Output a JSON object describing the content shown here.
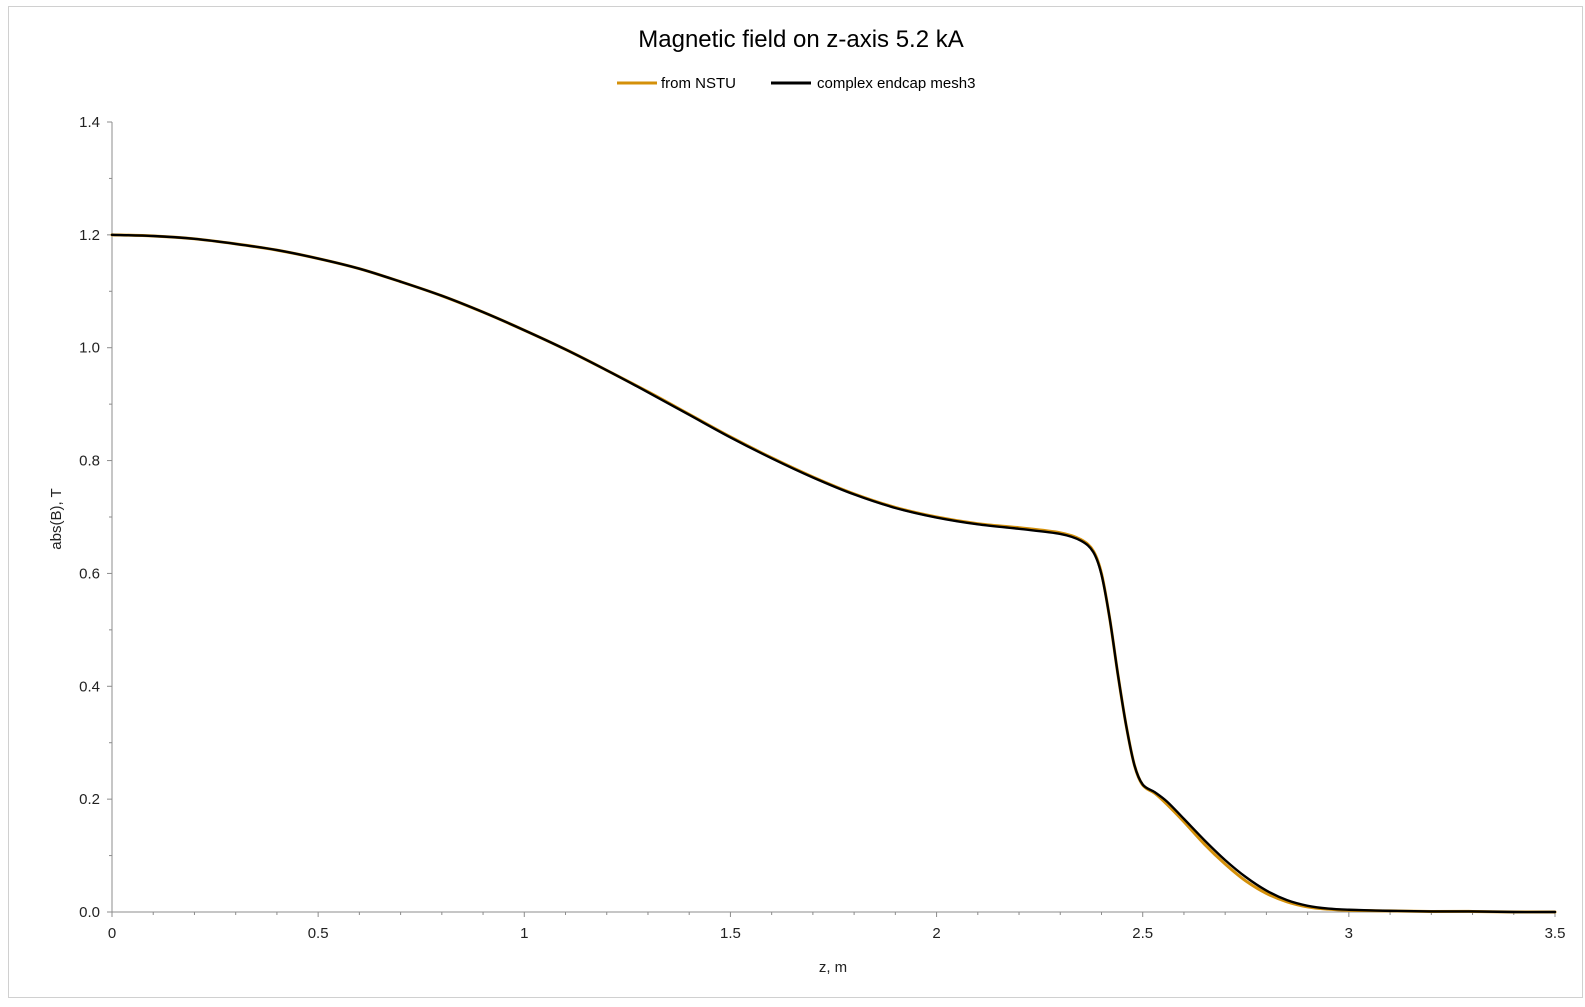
{
  "chart_data": {
    "type": "line",
    "title": "Magnetic field on z-axis 5.2 kA",
    "xlabel": "z, m",
    "ylabel": "abs(B), T",
    "xlim": [
      0,
      3.5
    ],
    "ylim": [
      0,
      1.4
    ],
    "x_ticks": [
      "0",
      "0.5",
      "1",
      "1.5",
      "2",
      "2.5",
      "3",
      "3.5"
    ],
    "y_ticks": [
      "0.0",
      "0.2",
      "0.4",
      "0.6",
      "0.8",
      "1.0",
      "1.2",
      "1.4"
    ],
    "grid": false,
    "legend_position": "top",
    "series": [
      {
        "name": "from NSTU",
        "color": "#d4900a",
        "x": [
          0,
          0.1,
          0.2,
          0.3,
          0.4,
          0.5,
          0.6,
          0.7,
          0.8,
          0.9,
          1.0,
          1.1,
          1.2,
          1.3,
          1.4,
          1.5,
          1.6,
          1.7,
          1.8,
          1.9,
          2.0,
          2.1,
          2.2,
          2.3,
          2.35,
          2.38,
          2.4,
          2.42,
          2.44,
          2.46,
          2.48,
          2.5,
          2.53,
          2.56,
          2.6,
          2.65,
          2.7,
          2.75,
          2.8,
          2.85,
          2.9,
          2.95,
          3.0,
          3.1,
          3.2,
          3.3,
          3.4,
          3.5
        ],
        "y": [
          1.2,
          1.198,
          1.193,
          1.184,
          1.173,
          1.158,
          1.14,
          1.117,
          1.092,
          1.063,
          1.031,
          0.997,
          0.96,
          0.922,
          0.882,
          0.842,
          0.805,
          0.771,
          0.741,
          0.717,
          0.7,
          0.688,
          0.681,
          0.672,
          0.66,
          0.64,
          0.6,
          0.52,
          0.42,
          0.33,
          0.26,
          0.225,
          0.21,
          0.19,
          0.16,
          0.12,
          0.085,
          0.055,
          0.033,
          0.018,
          0.009,
          0.005,
          0.003,
          0.002,
          0.001,
          0.001,
          0.0,
          0.0
        ]
      },
      {
        "name": "complex endcap mesh3",
        "color": "#000000",
        "x": [
          0,
          0.1,
          0.2,
          0.3,
          0.4,
          0.5,
          0.6,
          0.7,
          0.8,
          0.9,
          1.0,
          1.1,
          1.2,
          1.3,
          1.4,
          1.5,
          1.6,
          1.7,
          1.8,
          1.9,
          2.0,
          2.1,
          2.2,
          2.3,
          2.35,
          2.38,
          2.4,
          2.42,
          2.44,
          2.46,
          2.48,
          2.5,
          2.53,
          2.56,
          2.6,
          2.65,
          2.7,
          2.75,
          2.8,
          2.85,
          2.9,
          2.95,
          3.0,
          3.1,
          3.2,
          3.3,
          3.4,
          3.5
        ],
        "y": [
          1.2,
          1.198,
          1.193,
          1.184,
          1.173,
          1.158,
          1.14,
          1.117,
          1.092,
          1.063,
          1.031,
          0.997,
          0.96,
          0.921,
          0.881,
          0.841,
          0.804,
          0.77,
          0.74,
          0.716,
          0.699,
          0.687,
          0.679,
          0.67,
          0.658,
          0.638,
          0.598,
          0.52,
          0.42,
          0.33,
          0.26,
          0.226,
          0.212,
          0.195,
          0.165,
          0.127,
          0.092,
          0.062,
          0.038,
          0.021,
          0.011,
          0.006,
          0.004,
          0.002,
          0.001,
          0.001,
          0.0,
          0.0
        ]
      }
    ]
  }
}
